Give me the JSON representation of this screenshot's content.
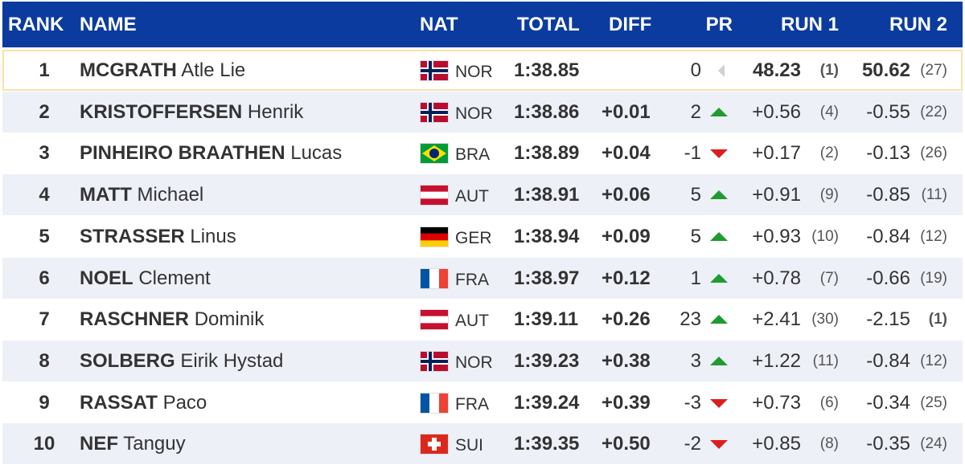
{
  "table": {
    "header": {
      "columns": [
        "RANK",
        "NAME",
        "NAT",
        "TOTAL",
        "DIFF",
        "PR",
        "RUN 1",
        "RUN 2"
      ]
    },
    "flags": {
      "NOR": {
        "pattern": "nordic",
        "colors": [
          "#ba0c2f",
          "#ffffff",
          "#00205b"
        ]
      },
      "BRA": {
        "pattern": "diamond",
        "colors": [
          "#009c3b",
          "#ffdf00",
          "#002776"
        ]
      },
      "AUT": {
        "pattern": "h-stripes",
        "colors": [
          "#c8102e",
          "#ffffff",
          "#c8102e"
        ]
      },
      "GER": {
        "pattern": "h-stripes",
        "colors": [
          "#000000",
          "#dd0000",
          "#ffce00"
        ]
      },
      "FRA": {
        "pattern": "v-stripes",
        "colors": [
          "#0055a4",
          "#ffffff",
          "#ef4135"
        ]
      },
      "SUI": {
        "pattern": "swiss",
        "colors": [
          "#da291c",
          "#ffffff"
        ]
      }
    },
    "rows": [
      {
        "rank": "1",
        "surname": "MCGRATH",
        "given": "Atle Lie",
        "nat": "NOR",
        "total": "1:38.85",
        "pr": "0",
        "run1": "48.23",
        "run1_rank": "(1)",
        "run2": "50.62",
        "run2_rank": "(27)"
      },
      {
        "rank": "2",
        "surname": "KRISTOFFERSEN",
        "given": "Henrik",
        "nat": "NOR",
        "total": "1:38.86",
        "diff": "+0.01",
        "pr": "2",
        "run1": "+0.56",
        "run1_rank": "(4)",
        "run2": "-0.55",
        "run2_rank": "(22)"
      },
      {
        "rank": "3",
        "surname": "PINHEIRO BRAATHEN",
        "given": "Lucas",
        "nat": "BRA",
        "total": "1:38.89",
        "diff": "+0.04",
        "pr": "-1",
        "run1": "+0.17",
        "run1_rank": "(2)",
        "run2": "-0.13",
        "run2_rank": "(26)"
      },
      {
        "rank": "4",
        "surname": "MATT",
        "given": "Michael",
        "nat": "AUT",
        "total": "1:38.91",
        "diff": "+0.06",
        "pr": "5",
        "run1": "+0.91",
        "run1_rank": "(9)",
        "run2": "-0.85",
        "run2_rank": "(11)"
      },
      {
        "rank": "5",
        "surname": "STRASSER",
        "given": "Linus",
        "nat": "GER",
        "total": "1:38.94",
        "diff": "+0.09",
        "pr": "5",
        "run1": "+0.93",
        "run1_rank": "(10)",
        "run2": "-0.84",
        "run2_rank": "(12)"
      },
      {
        "rank": "6",
        "surname": "NOEL",
        "given": "Clement",
        "nat": "FRA",
        "total": "1:38.97",
        "diff": "+0.12",
        "pr": "1",
        "run1": "+0.78",
        "run1_rank": "(7)",
        "run2": "-0.66",
        "run2_rank": "(19)"
      },
      {
        "rank": "7",
        "surname": "RASCHNER",
        "given": "Dominik",
        "nat": "AUT",
        "total": "1:39.11",
        "diff": "+0.26",
        "pr": "23",
        "run1": "+2.41",
        "run1_rank": "(30)",
        "run2": "-2.15",
        "run2_rank": "(1)"
      },
      {
        "rank": "8",
        "surname": "SOLBERG",
        "given": "Eirik Hystad",
        "nat": "NOR",
        "total": "1:39.23",
        "diff": "+0.38",
        "pr": "3",
        "run1": "+1.22",
        "run1_rank": "(11)",
        "run2": "-0.84",
        "run2_rank": "(12)"
      },
      {
        "rank": "9",
        "surname": "RASSAT",
        "given": "Paco",
        "nat": "FRA",
        "total": "1:39.24",
        "diff": "+0.39",
        "pr": "-3",
        "run1": "+0.73",
        "run1_rank": "(6)",
        "run2": "-0.34",
        "run2_rank": "(25)"
      },
      {
        "rank": "10",
        "surname": "NEF",
        "given": "Tanguy",
        "nat": "SUI",
        "total": "1:39.35",
        "diff": "+0.50",
        "pr": "-2",
        "run1": "+0.85",
        "run1_rank": "(8)",
        "run2": "-0.35",
        "run2_rank": "(24)"
      }
    ]
  }
}
